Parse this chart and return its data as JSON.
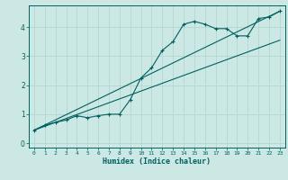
{
  "title": "",
  "xlabel": "Humidex (Indice chaleur)",
  "ylabel": "",
  "bg_color": "#cce8e4",
  "grid_color": "#b8d8d4",
  "line_color": "#006060",
  "xlim": [
    -0.5,
    23.5
  ],
  "ylim": [
    -0.15,
    4.75
  ],
  "xticks": [
    0,
    1,
    2,
    3,
    4,
    5,
    6,
    7,
    8,
    9,
    10,
    11,
    12,
    13,
    14,
    15,
    16,
    17,
    18,
    19,
    20,
    21,
    22,
    23
  ],
  "yticks": [
    0,
    1,
    2,
    3,
    4
  ],
  "curve_x": [
    0,
    1,
    2,
    3,
    4,
    5,
    6,
    7,
    8,
    9,
    10,
    11,
    12,
    13,
    14,
    15,
    16,
    17,
    18,
    19,
    20,
    21,
    22,
    23
  ],
  "curve_y": [
    0.45,
    0.62,
    0.72,
    0.8,
    0.95,
    0.88,
    0.95,
    1.0,
    1.0,
    1.5,
    2.25,
    2.6,
    3.2,
    3.5,
    4.1,
    4.2,
    4.1,
    3.95,
    3.95,
    3.7,
    3.7,
    4.3,
    4.35,
    4.55
  ],
  "line1_x": [
    0,
    23
  ],
  "line1_y": [
    0.45,
    4.55
  ],
  "line2_x": [
    0,
    23
  ],
  "line2_y": [
    0.45,
    3.55
  ]
}
